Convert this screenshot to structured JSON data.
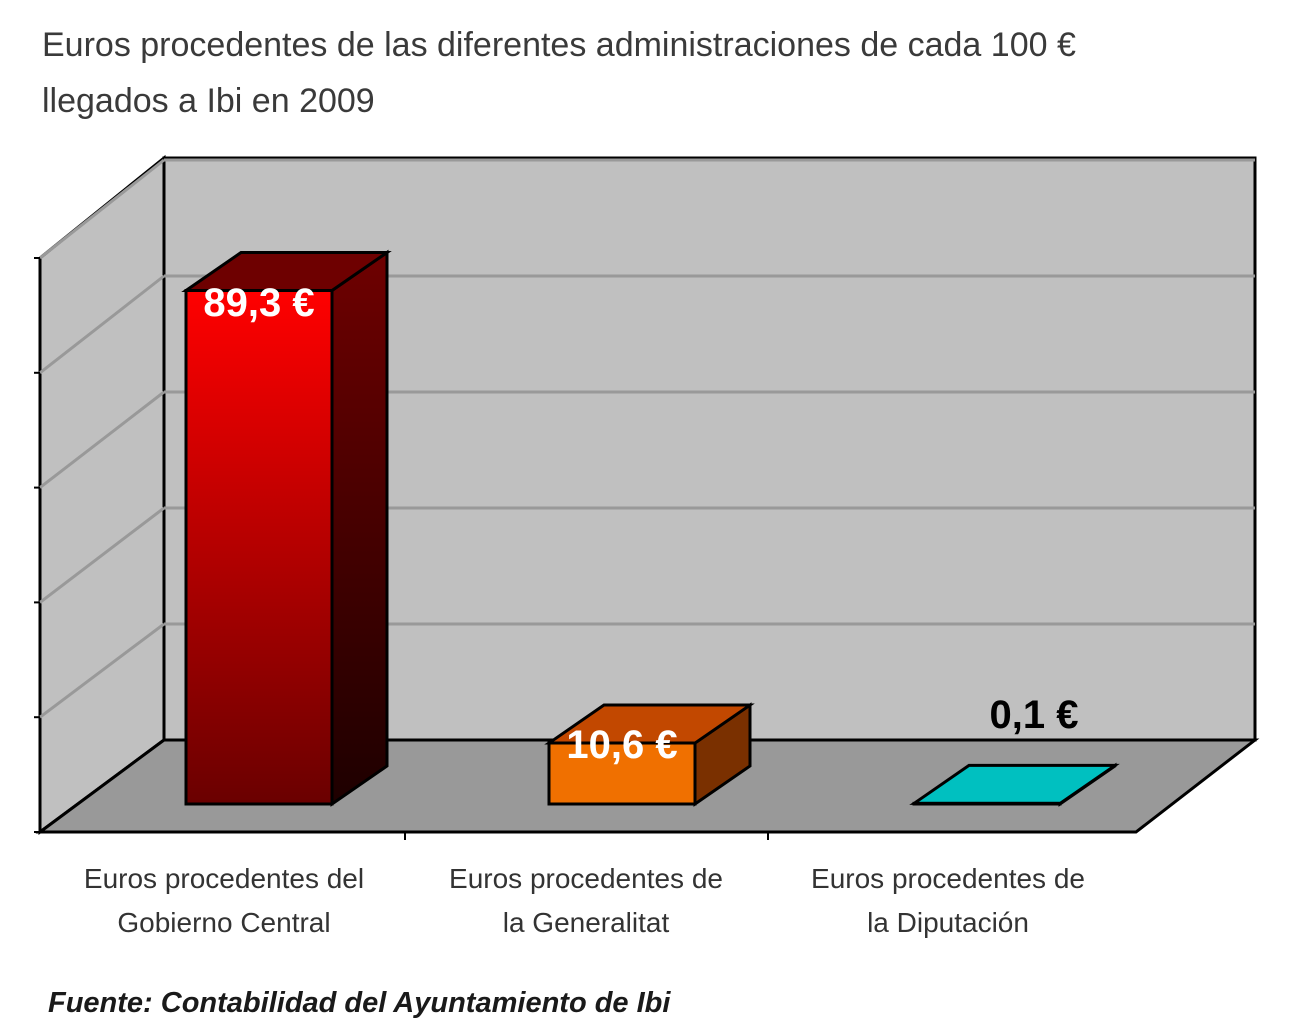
{
  "chart_data": {
    "type": "bar",
    "title_lines": [
      "Euros procedentes de las diferentes administraciones de cada 100 €",
      "llegados a Ibi en 2009"
    ],
    "categories": [
      [
        "Euros procedentes del",
        "Gobierno Central"
      ],
      [
        "Euros procedentes de",
        "la Generalitat"
      ],
      [
        "Euros procedentes de",
        "la Diputación"
      ]
    ],
    "values": [
      89.3,
      10.6,
      0.1
    ],
    "value_labels": [
      "89,3 €",
      "10,6 €",
      "0,1 €"
    ],
    "ylim": [
      0,
      100
    ],
    "gridlines": true,
    "three_d": true,
    "colors": [
      "#e00000",
      "#f07000",
      "#00c0c0"
    ]
  },
  "source": "Fuente: Contabilidad del Ayuntamiento de Ibi"
}
